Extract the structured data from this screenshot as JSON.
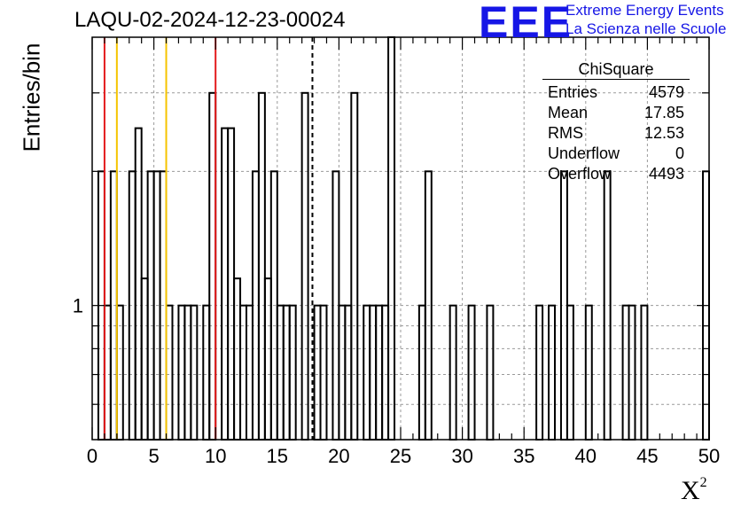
{
  "title": "LAQU-02-2024-12-23-00024",
  "logo": {
    "mark": "EEE",
    "line1": "Extreme Energy Events",
    "line2": "La Scienza nelle Scuole",
    "color": "#1616e6"
  },
  "stats": {
    "title": "ChiSquare",
    "rows": [
      {
        "label": "Entries",
        "value": "4579"
      },
      {
        "label": "Mean",
        "value": "17.85"
      },
      {
        "label": "RMS",
        "value": "12.53"
      },
      {
        "label": "Underflow",
        "value": "0"
      },
      {
        "label": "Overflow",
        "value": "4493"
      }
    ]
  },
  "chart_data": {
    "type": "bar",
    "title": "LAQU-02-2024-12-23-00024",
    "xlabel": "X",
    "xlabel_superscript": "2",
    "ylabel": "Entries/bin",
    "xlim": [
      0,
      50
    ],
    "ylim": [
      0.5,
      4
    ],
    "yscale": "log",
    "grid": true,
    "legend": "top-right",
    "bin_width": 0.5,
    "xticks": [
      "0",
      "5",
      "10",
      "15",
      "20",
      "25",
      "30",
      "35",
      "40",
      "45",
      "50"
    ],
    "ytick_labels": [
      {
        "value": 1,
        "label": "1"
      }
    ],
    "histogram_bins": [
      {
        "x": 0.5,
        "y": 2
      },
      {
        "x": 1.0,
        "y": 1
      },
      {
        "x": 1.5,
        "y": 2
      },
      {
        "x": 2.0,
        "y": 1
      },
      {
        "x": 3.0,
        "y": 2
      },
      {
        "x": 3.5,
        "y": 2.5
      },
      {
        "x": 4.0,
        "y": 1.15
      },
      {
        "x": 4.5,
        "y": 2
      },
      {
        "x": 5.0,
        "y": 2
      },
      {
        "x": 5.5,
        "y": 2
      },
      {
        "x": 6.0,
        "y": 1
      },
      {
        "x": 7.0,
        "y": 1
      },
      {
        "x": 7.5,
        "y": 1
      },
      {
        "x": 8.0,
        "y": 1
      },
      {
        "x": 9.0,
        "y": 1
      },
      {
        "x": 9.5,
        "y": 3
      },
      {
        "x": 10.5,
        "y": 2.5
      },
      {
        "x": 11.0,
        "y": 2.5
      },
      {
        "x": 11.5,
        "y": 1.15
      },
      {
        "x": 12.0,
        "y": 1
      },
      {
        "x": 12.5,
        "y": 1
      },
      {
        "x": 13.0,
        "y": 2
      },
      {
        "x": 13.5,
        "y": 3
      },
      {
        "x": 14.0,
        "y": 1.15
      },
      {
        "x": 14.5,
        "y": 2
      },
      {
        "x": 15.0,
        "y": 1
      },
      {
        "x": 15.5,
        "y": 1
      },
      {
        "x": 16.0,
        "y": 1
      },
      {
        "x": 17.0,
        "y": 3
      },
      {
        "x": 18.0,
        "y": 1
      },
      {
        "x": 18.5,
        "y": 1
      },
      {
        "x": 19.5,
        "y": 2
      },
      {
        "x": 20.0,
        "y": 1
      },
      {
        "x": 20.5,
        "y": 1
      },
      {
        "x": 21.0,
        "y": 3
      },
      {
        "x": 22.0,
        "y": 1
      },
      {
        "x": 22.5,
        "y": 1
      },
      {
        "x": 23.0,
        "y": 1
      },
      {
        "x": 23.5,
        "y": 1
      },
      {
        "x": 24.0,
        "y": 4
      },
      {
        "x": 26.5,
        "y": 1
      },
      {
        "x": 27.0,
        "y": 2
      },
      {
        "x": 29.0,
        "y": 1
      },
      {
        "x": 30.5,
        "y": 1
      },
      {
        "x": 32.0,
        "y": 1
      },
      {
        "x": 36.0,
        "y": 1
      },
      {
        "x": 37.0,
        "y": 1
      },
      {
        "x": 38.0,
        "y": 2
      },
      {
        "x": 38.5,
        "y": 1
      },
      {
        "x": 40.0,
        "y": 1
      },
      {
        "x": 41.5,
        "y": 2
      },
      {
        "x": 43.0,
        "y": 1
      },
      {
        "x": 43.5,
        "y": 1
      },
      {
        "x": 44.5,
        "y": 1
      },
      {
        "x": 49.5,
        "y": 2
      }
    ],
    "vertical_lines": [
      {
        "x": 1.0,
        "color": "#e31a1c",
        "style": "solid"
      },
      {
        "x": 2.0,
        "color": "#f5c400",
        "style": "solid"
      },
      {
        "x": 6.0,
        "color": "#f5c400",
        "style": "solid"
      },
      {
        "x": 10.0,
        "color": "#e31a1c",
        "style": "solid"
      },
      {
        "x": 17.85,
        "color": "#000000",
        "style": "dashed"
      }
    ]
  }
}
